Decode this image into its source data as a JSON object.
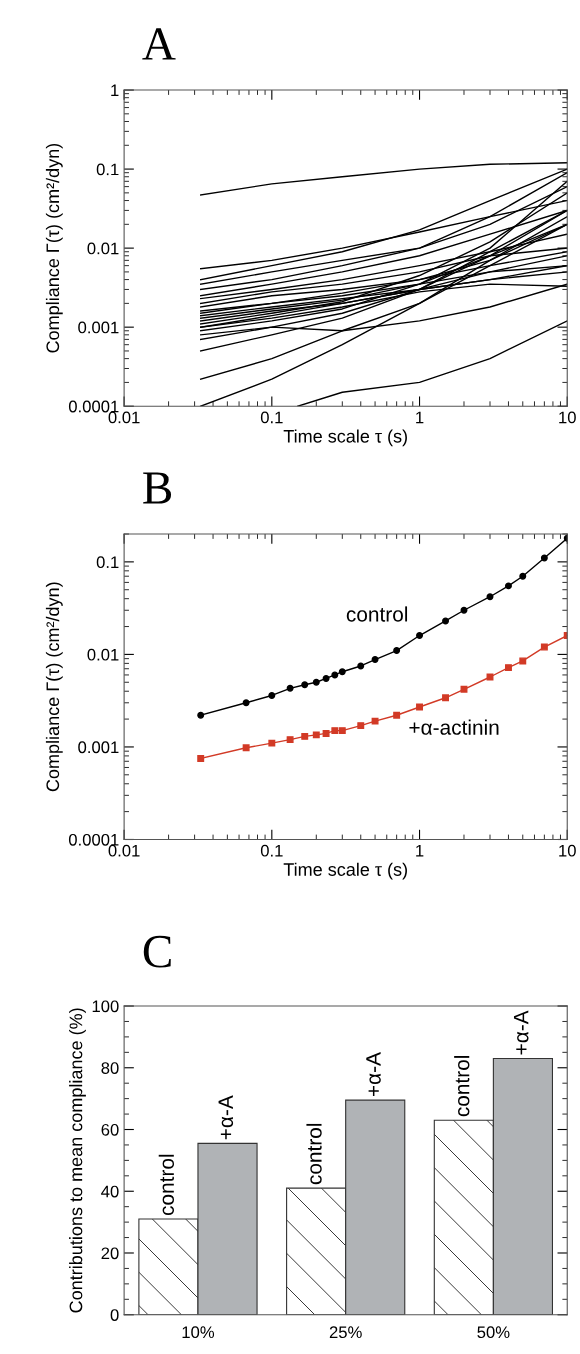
{
  "chart_data": [
    {
      "type": "line",
      "title": "A",
      "xlabel": "Time scale τ (s)",
      "ylabel": "Compliance Γ(τ) (cm²/dyn)",
      "log": "xy",
      "xlim": [
        0.01,
        10
      ],
      "ylim": [
        0.0001,
        1
      ],
      "xticks": [
        0.01,
        0.1,
        1,
        10
      ],
      "yticks": [
        0.0001,
        0.001,
        0.01,
        0.1,
        1
      ],
      "grid": false,
      "legend": false,
      "marker": "none",
      "line_style": "solid",
      "x": [
        0.033,
        0.1,
        0.3,
        1,
        3,
        10
      ],
      "series": [
        {
          "color": "#000000",
          "values": [
            0.047,
            0.065,
            0.08,
            0.1,
            0.115,
            0.12
          ]
        },
        {
          "color": "#000000",
          "values": [
            0.0055,
            0.007,
            0.01,
            0.016,
            0.025,
            0.04
          ]
        },
        {
          "color": "#000000",
          "values": [
            0.004,
            0.006,
            0.009,
            0.017,
            0.04,
            0.1
          ]
        },
        {
          "color": "#000000",
          "values": [
            0.0035,
            0.005,
            0.007,
            0.01,
            0.02,
            0.06
          ]
        },
        {
          "color": "#000000",
          "values": [
            0.003,
            0.004,
            0.006,
            0.01,
            0.025,
            0.09
          ]
        },
        {
          "color": "#000000",
          "values": [
            0.0025,
            0.0035,
            0.005,
            0.008,
            0.015,
            0.03
          ]
        },
        {
          "color": "#000000",
          "values": [
            0.0023,
            0.003,
            0.004,
            0.006,
            0.009,
            0.015
          ]
        },
        {
          "color": "#000000",
          "values": [
            0.002,
            0.0028,
            0.0035,
            0.005,
            0.008,
            0.01
          ]
        },
        {
          "color": "#000000",
          "values": [
            0.0018,
            0.0025,
            0.003,
            0.004,
            0.006,
            0.009
          ]
        },
        {
          "color": "#000000",
          "values": [
            0.0016,
            0.002,
            0.0027,
            0.004,
            0.007,
            0.02
          ]
        },
        {
          "color": "#000000",
          "values": [
            0.0015,
            0.002,
            0.0025,
            0.0035,
            0.005,
            0.006
          ]
        },
        {
          "color": "#000000",
          "values": [
            0.0014,
            0.0018,
            0.0023,
            0.003,
            0.004,
            0.005
          ]
        },
        {
          "color": "#000000",
          "values": [
            0.0013,
            0.0017,
            0.0022,
            0.0035,
            0.008,
            0.03
          ]
        },
        {
          "color": "#000000",
          "values": [
            0.0012,
            0.0016,
            0.002,
            0.003,
            0.005,
            0.008
          ]
        },
        {
          "color": "#000000",
          "values": [
            0.0011,
            0.0015,
            0.0021,
            0.0045,
            0.012,
            0.05
          ]
        },
        {
          "color": "#000000",
          "values": [
            0.001,
            0.0014,
            0.002,
            0.003,
            0.004,
            0.006
          ]
        },
        {
          "color": "#000000",
          "values": [
            0.001,
            0.0013,
            0.0018,
            0.0028,
            0.0035,
            0.0033
          ]
        },
        {
          "color": "#000000",
          "values": [
            0.0009,
            0.0012,
            0.0017,
            0.0035,
            0.01,
            0.07
          ]
        },
        {
          "color": "#000000",
          "values": [
            0.0008,
            0.001,
            0.0009,
            0.0012,
            0.0018,
            0.0035
          ]
        },
        {
          "color": "#000000",
          "values": [
            0.0007,
            0.001,
            0.0015,
            0.003,
            0.008,
            0.02
          ]
        },
        {
          "color": "#000000",
          "values": [
            0.0005,
            0.0008,
            0.0013,
            0.003,
            0.009,
            0.03
          ]
        },
        {
          "color": "#000000",
          "values": [
            0.00022,
            0.0004,
            0.0009,
            0.002,
            0.006,
            0.02
          ]
        },
        {
          "color": "#000000",
          "values": [
            0.0001,
            0.00022,
            0.0006,
            0.002,
            0.007,
            0.025
          ]
        },
        {
          "color": "#000000",
          "x": [
            0.15,
            0.3,
            1,
            3,
            10
          ],
          "values": [
            0.0001,
            0.00015,
            0.0002,
            0.0004,
            0.0012
          ]
        }
      ]
    },
    {
      "type": "line",
      "title": "B",
      "xlabel": "Time scale τ (s)",
      "ylabel": "Compliance Γ(τ) (cm²/dyn)",
      "log": "xy",
      "xlim": [
        0.01,
        10
      ],
      "ylim": [
        0.0001,
        0.2
      ],
      "xticks": [
        0.01,
        0.1,
        1,
        10
      ],
      "yticks": [
        0.0001,
        0.001,
        0.01,
        0.1
      ],
      "grid": false,
      "legend": false,
      "line_style": "solid",
      "x": [
        0.033,
        0.067,
        0.1,
        0.133,
        0.167,
        0.2,
        0.233,
        0.267,
        0.3,
        0.4,
        0.5,
        0.7,
        1,
        1.5,
        2,
        3,
        4,
        5,
        7,
        10
      ],
      "series": [
        {
          "name": "control",
          "color": "#000000",
          "marker": "circle",
          "values": [
            0.0022,
            0.003,
            0.0036,
            0.0043,
            0.0047,
            0.005,
            0.0055,
            0.006,
            0.0065,
            0.0075,
            0.0088,
            0.011,
            0.016,
            0.023,
            0.03,
            0.042,
            0.055,
            0.07,
            0.11,
            0.18
          ]
        },
        {
          "name": "+α-actinin",
          "color": "#d23a26",
          "marker": "square",
          "values": [
            0.00075,
            0.00098,
            0.0011,
            0.0012,
            0.0013,
            0.00135,
            0.0014,
            0.0015,
            0.0015,
            0.0017,
            0.0019,
            0.0022,
            0.0027,
            0.0034,
            0.0042,
            0.0057,
            0.0072,
            0.0085,
            0.012,
            0.016
          ]
        }
      ]
    },
    {
      "type": "bar",
      "title": "C",
      "ylabel": "Contributions to mean compliance (%)",
      "ylim": [
        0,
        100
      ],
      "yticks": [
        0,
        20,
        40,
        60,
        80,
        100
      ],
      "grid": false,
      "legend": false,
      "categories": [
        "10%",
        "25%",
        "50%"
      ],
      "series": [
        {
          "name": "control",
          "color": "#ffffff",
          "values": [
            31,
            41,
            63
          ]
        },
        {
          "name": "+α-A",
          "color": "#b0b3b6",
          "values": [
            55.5,
            69.5,
            83
          ]
        }
      ]
    }
  ]
}
